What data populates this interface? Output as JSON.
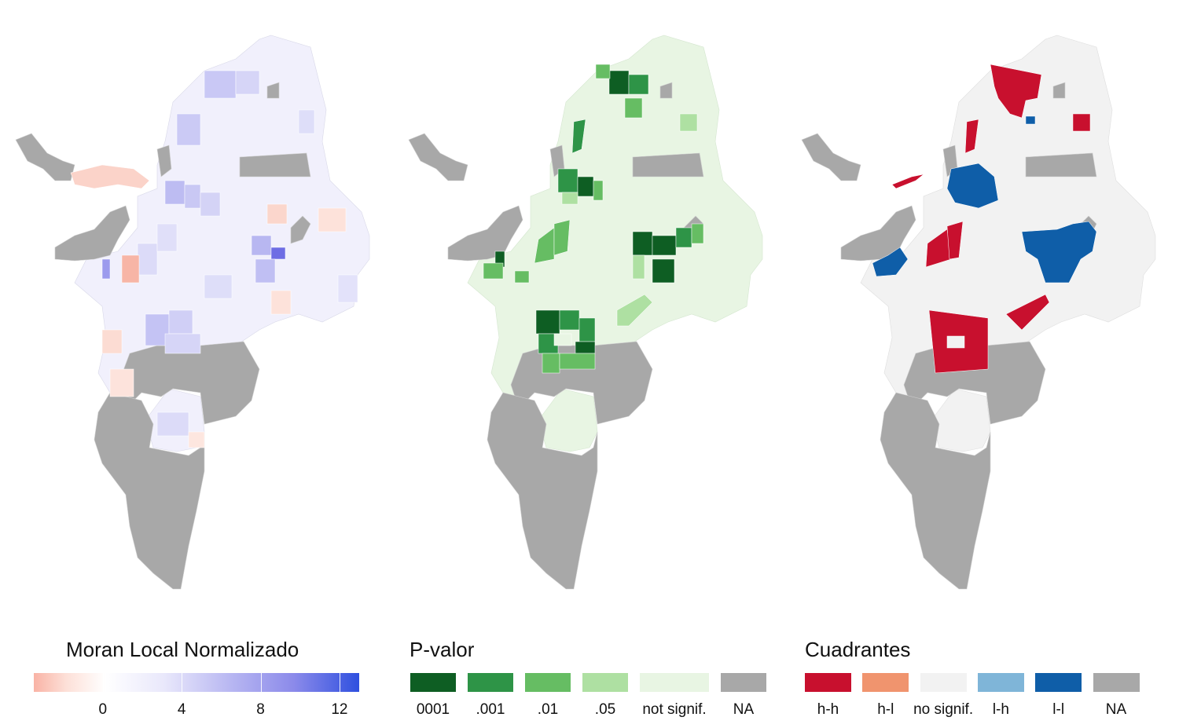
{
  "maps": [
    {
      "id": "moran",
      "variable": "Moran Local Normalizado"
    },
    {
      "id": "pval",
      "variable": "P-valor"
    },
    {
      "id": "quad",
      "variable": "Cuadrantes"
    }
  ],
  "legends": {
    "moran": {
      "title": "Moran Local Normalizado",
      "tick_labels": [
        "0",
        "4",
        "8",
        "12"
      ],
      "tick_values": [
        0,
        4,
        8,
        12
      ],
      "range": [
        -3.5,
        13
      ],
      "colors": [
        "#f9b3a5",
        "#ffffff",
        "#2f50df"
      ]
    },
    "pval": {
      "title": "P-valor",
      "items": [
        {
          "label": "0001",
          "color": "#0e5e23"
        },
        {
          "label": ".001",
          "color": "#2e9447"
        },
        {
          "label": ".01",
          "color": "#66bd63"
        },
        {
          "label": ".05",
          "color": "#aee0a2"
        },
        {
          "label": "not signif.",
          "color": "#e8f5e3"
        },
        {
          "label": "NA",
          "color": "#a8a8a8"
        }
      ]
    },
    "quad": {
      "title": "Cuadrantes",
      "items": [
        {
          "label": "h-h",
          "color": "#c8102e"
        },
        {
          "label": "h-l",
          "color": "#f0946e"
        },
        {
          "label": "no signif.",
          "color": "#f2f2f2"
        },
        {
          "label": "l-h",
          "color": "#7fb5d8"
        },
        {
          "label": "l-l",
          "color": "#0f5ea8"
        },
        {
          "label": "NA",
          "color": "#a8a8a8"
        }
      ]
    }
  },
  "region_colors": {
    "na": "#a8a8a8",
    "moran_base": "#f1f0fc",
    "pval_base": "#e8f5e3",
    "quad_base": "#f2f2f2"
  }
}
